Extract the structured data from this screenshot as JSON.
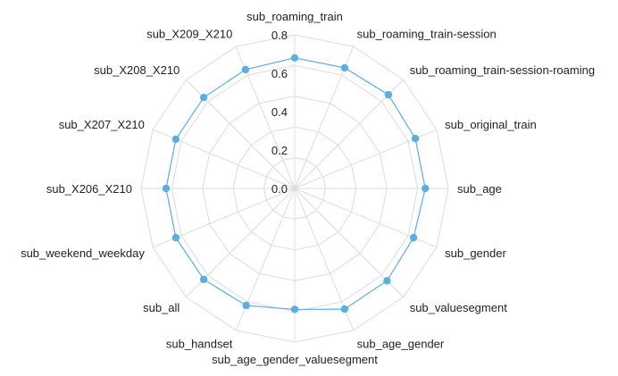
{
  "chart_data": {
    "type": "radar",
    "axes": [
      "sub_roaming_train",
      "sub_roaming_train-session",
      "sub_roaming_train-session-roaming",
      "sub_original_train",
      "sub_age",
      "sub_gender",
      "sub_valuesegment",
      "sub_age_gender",
      "sub_age_gender_valuesegment",
      "sub_handset",
      "sub_all",
      "sub_weekend_weekday",
      "sub_X206_X210",
      "sub_X207_X210",
      "sub_X208_X210",
      "sub_X209_X210"
    ],
    "series": [
      {
        "values": [
          0.68,
          0.68,
          0.69,
          0.68,
          0.68,
          0.67,
          0.68,
          0.68,
          0.63,
          0.66,
          0.67,
          0.67,
          0.67,
          0.67,
          0.67,
          0.67
        ],
        "color": "#5aaee0"
      }
    ],
    "rlim": [
      0,
      0.8
    ],
    "ticks": [
      "0.0",
      "0.2",
      "0.4",
      "0.6",
      "0.8"
    ],
    "grid": true
  }
}
